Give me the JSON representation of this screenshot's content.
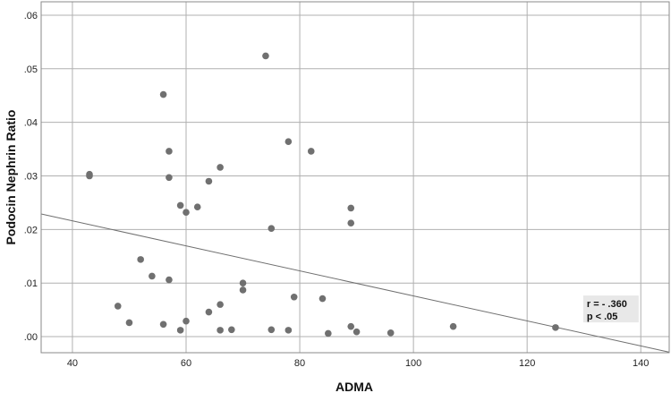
{
  "chart_data": {
    "type": "scatter",
    "title": "",
    "xlabel": "ADMA",
    "ylabel": "Podocin Nephrin Ratio",
    "xlim": [
      34.5,
      145
    ],
    "ylim": [
      -0.003,
      0.0625
    ],
    "xticks": [
      40,
      60,
      80,
      100,
      120,
      140
    ],
    "xtick_labels": [
      "40",
      "60",
      "80",
      "100",
      "120",
      "140"
    ],
    "yticks": [
      0.0,
      0.01,
      0.02,
      0.03,
      0.04,
      0.05,
      0.06
    ],
    "ytick_labels": [
      ".00",
      ".01",
      ".02",
      ".03",
      ".04",
      ".05",
      ".06"
    ],
    "grid": true,
    "point_color": "#707070",
    "fit_line": {
      "x": [
        34.5,
        145
      ],
      "y": [
        0.0229,
        -0.0029
      ],
      "color": "#707070"
    },
    "annotation": {
      "lines": [
        "r = - .360",
        "p < .05"
      ],
      "x": 130.5,
      "y": 0.0045,
      "background": "#e8e8e8"
    },
    "series": [
      {
        "points": [
          [
            43,
            0.0303
          ],
          [
            43,
            0.03
          ],
          [
            48,
            0.0057
          ],
          [
            50,
            0.0026
          ],
          [
            52,
            0.0144
          ],
          [
            54,
            0.0113
          ],
          [
            56,
            0.0452
          ],
          [
            56,
            0.0023
          ],
          [
            57,
            0.0346
          ],
          [
            57,
            0.0297
          ],
          [
            57,
            0.0106
          ],
          [
            59,
            0.0245
          ],
          [
            59,
            0.0012
          ],
          [
            60,
            0.0232
          ],
          [
            60,
            0.0029
          ],
          [
            62,
            0.0242
          ],
          [
            64,
            0.029
          ],
          [
            64,
            0.0046
          ],
          [
            66,
            0.0316
          ],
          [
            66,
            0.006
          ],
          [
            66,
            0.0012
          ],
          [
            68,
            0.0013
          ],
          [
            70,
            0.01
          ],
          [
            70,
            0.0087
          ],
          [
            74,
            0.0524
          ],
          [
            75,
            0.0202
          ],
          [
            75,
            0.0013
          ],
          [
            78,
            0.0364
          ],
          [
            78,
            0.0012
          ],
          [
            79,
            0.0074
          ],
          [
            82,
            0.0346
          ],
          [
            84,
            0.0071
          ],
          [
            85,
            0.0006
          ],
          [
            89,
            0.024
          ],
          [
            89,
            0.0212
          ],
          [
            89,
            0.0019
          ],
          [
            90,
            0.0009
          ],
          [
            96,
            0.0007
          ],
          [
            107,
            0.0019
          ],
          [
            125,
            0.0017
          ]
        ]
      }
    ]
  }
}
